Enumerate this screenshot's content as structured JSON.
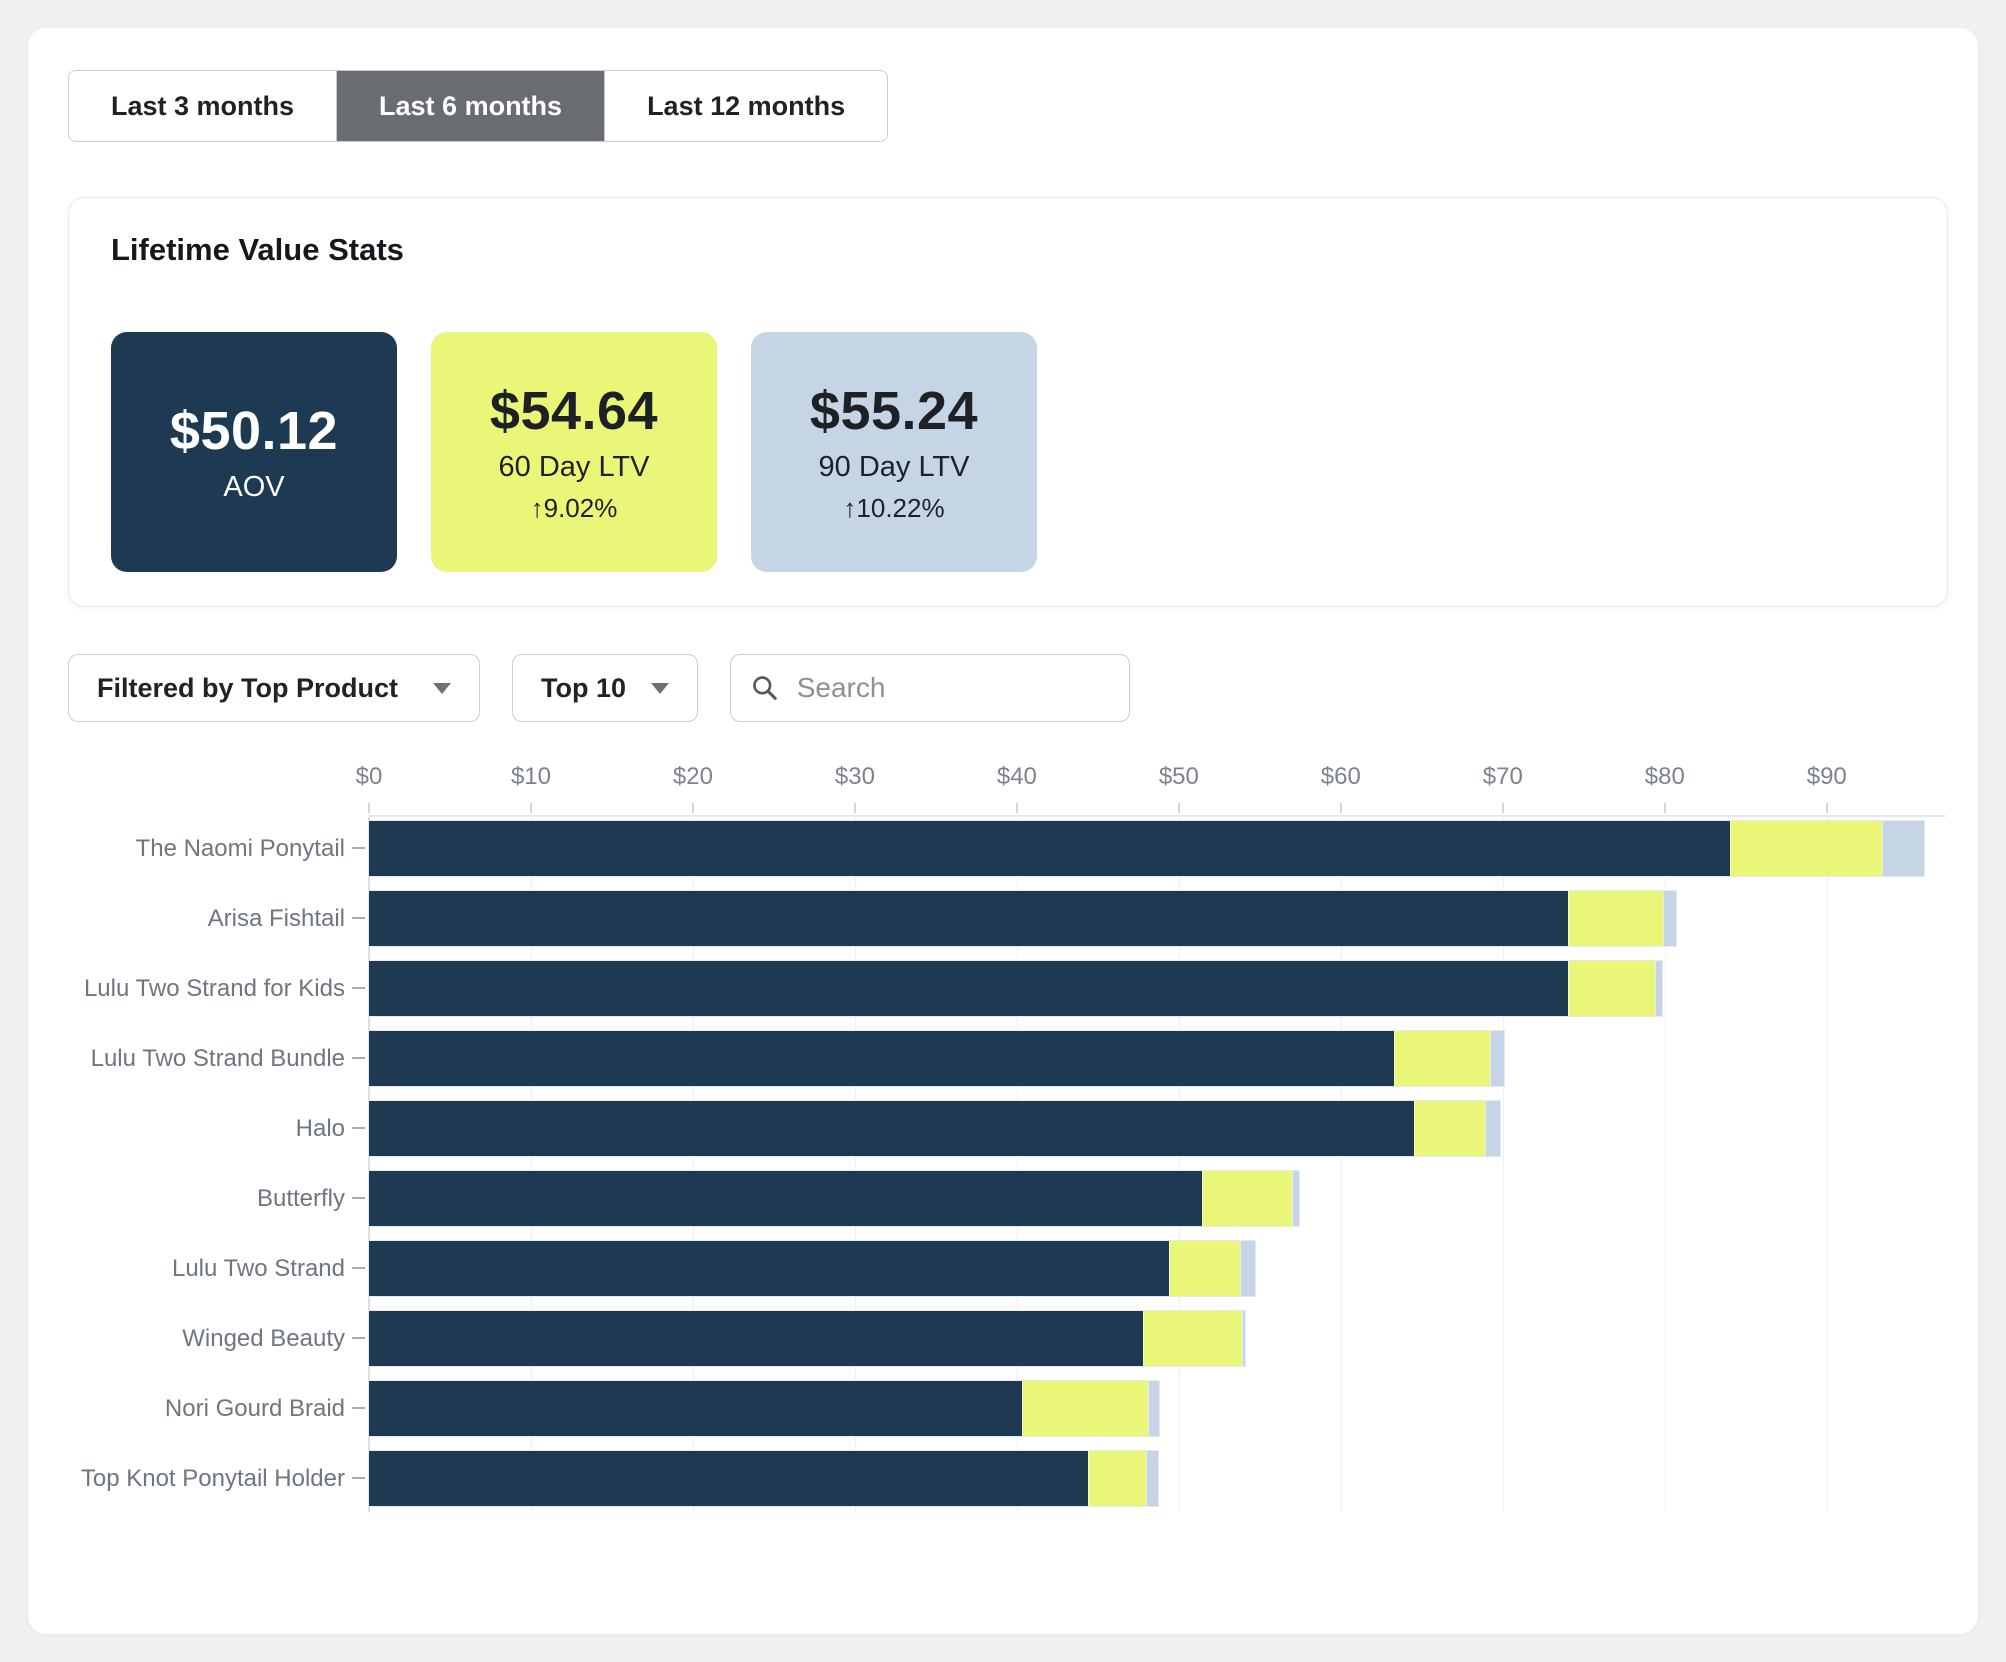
{
  "time_filter": {
    "tabs": [
      {
        "label": "Last 3 months",
        "selected": false
      },
      {
        "label": "Last 6 months",
        "selected": true
      },
      {
        "label": "Last 12 months",
        "selected": false
      }
    ]
  },
  "stats_card": {
    "title": "Lifetime Value Stats",
    "stats": [
      {
        "value": "$50.12",
        "label": "AOV",
        "delta": "",
        "bg": "#1e3a52",
        "text": "#ffffff"
      },
      {
        "value": "$54.64",
        "label": "60 Day LTV",
        "delta": "↑9.02%",
        "bg": "#e9f678",
        "text": "#1d2126"
      },
      {
        "value": "$55.24",
        "label": "90 Day LTV",
        "delta": "↑10.22%",
        "bg": "#c5d5e6",
        "text": "#1d2126"
      }
    ]
  },
  "filters": {
    "product_filter_label": "Filtered by Top Product",
    "top_n_label": "Top 10",
    "search_placeholder": "Search",
    "search_value": ""
  },
  "chart_data": {
    "type": "bar",
    "orientation": "horizontal",
    "stacked": true,
    "title": "",
    "xlabel": "",
    "ylabel": "",
    "x_max": 97.3,
    "x_tick_values": [
      0,
      10,
      20,
      30,
      40,
      50,
      60,
      70,
      80,
      90
    ],
    "x_tick_labels": [
      "$0",
      "$10",
      "$20",
      "$30",
      "$40",
      "$50",
      "$60",
      "$70",
      "$80",
      "$90"
    ],
    "series_names": [
      "AOV",
      "60 Day LTV",
      "90 Day LTV"
    ],
    "colors": {
      "aov": "#1e3a52",
      "ltv60": "#e9f678",
      "ltv90": "#c5d5e6"
    },
    "products": [
      {
        "label": "The Naomi Ponytail",
        "aov": 84.0,
        "ltv60": 93.4,
        "ltv90": 96.0
      },
      {
        "label": "Arisa Fishtail",
        "aov": 74.0,
        "ltv60": 79.9,
        "ltv90": 80.7
      },
      {
        "label": "Lulu Two Strand for Kids",
        "aov": 74.0,
        "ltv60": 79.4,
        "ltv90": 79.8
      },
      {
        "label": "Lulu Two Strand Bundle",
        "aov": 63.3,
        "ltv60": 69.2,
        "ltv90": 70.1
      },
      {
        "label": "Halo",
        "aov": 64.5,
        "ltv60": 68.9,
        "ltv90": 69.8
      },
      {
        "label": "Butterfly",
        "aov": 51.4,
        "ltv60": 57.0,
        "ltv90": 57.4
      },
      {
        "label": "Lulu Two Strand",
        "aov": 49.4,
        "ltv60": 53.8,
        "ltv90": 54.7
      },
      {
        "label": "Winged Beauty",
        "aov": 47.8,
        "ltv60": 53.9,
        "ltv90": 54.1
      },
      {
        "label": "Nori Gourd Braid",
        "aov": 40.3,
        "ltv60": 48.1,
        "ltv90": 48.8
      },
      {
        "label": "Top Knot Ponytail Holder",
        "aov": 44.4,
        "ltv60": 48.0,
        "ltv90": 48.7
      }
    ]
  }
}
